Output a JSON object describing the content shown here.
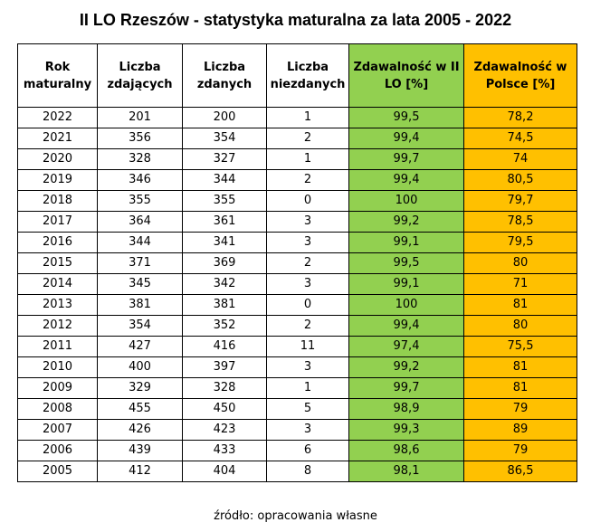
{
  "title": "II LO Rzeszów - statystyka maturalna za lata 2005 - 2022",
  "source": "źródło: opracowania własne",
  "colors": {
    "school_rate_bg": "#92d050",
    "national_rate_bg": "#ffc000",
    "border": "#000000"
  },
  "chart_data": {
    "type": "table",
    "title": "II LO Rzeszów - statystyka maturalna za lata 2005 - 2022",
    "columns": [
      "Rok maturalny",
      "Liczba zdających",
      "Liczba zdanych",
      "Liczba niezdanych",
      "Zdawalność w II LO [%]",
      "Zdawalność w Polsce [%]"
    ],
    "rows": [
      [
        "2022",
        "201",
        "200",
        "1",
        "99,5",
        "78,2"
      ],
      [
        "2021",
        "356",
        "354",
        "2",
        "99,4",
        "74,5"
      ],
      [
        "2020",
        "328",
        "327",
        "1",
        "99,7",
        "74"
      ],
      [
        "2019",
        "346",
        "344",
        "2",
        "99,4",
        "80,5"
      ],
      [
        "2018",
        "355",
        "355",
        "0",
        "100",
        "79,7"
      ],
      [
        "2017",
        "364",
        "361",
        "3",
        "99,2",
        "78,5"
      ],
      [
        "2016",
        "344",
        "341",
        "3",
        "99,1",
        "79,5"
      ],
      [
        "2015",
        "371",
        "369",
        "2",
        "99,5",
        "80"
      ],
      [
        "2014",
        "345",
        "342",
        "3",
        "99,1",
        "71"
      ],
      [
        "2013",
        "381",
        "381",
        "0",
        "100",
        "81"
      ],
      [
        "2012",
        "354",
        "352",
        "2",
        "99,4",
        "80"
      ],
      [
        "2011",
        "427",
        "416",
        "11",
        "97,4",
        "75,5"
      ],
      [
        "2010",
        "400",
        "397",
        "3",
        "99,2",
        "81"
      ],
      [
        "2009",
        "329",
        "328",
        "1",
        "99,7",
        "81"
      ],
      [
        "2008",
        "455",
        "450",
        "5",
        "98,9",
        "79"
      ],
      [
        "2007",
        "426",
        "423",
        "3",
        "99,3",
        "89"
      ],
      [
        "2006",
        "439",
        "433",
        "6",
        "98,6",
        "79"
      ],
      [
        "2005",
        "412",
        "404",
        "8",
        "98,1",
        "86,5"
      ]
    ]
  }
}
